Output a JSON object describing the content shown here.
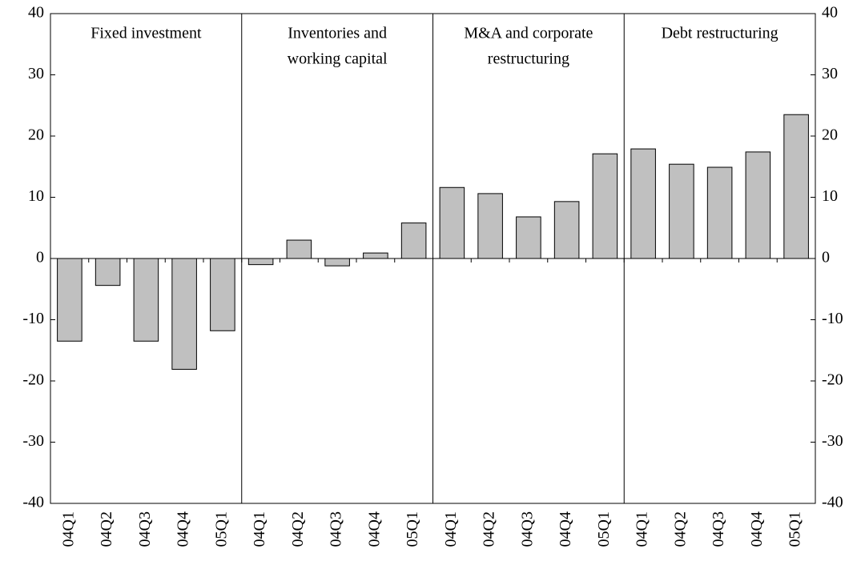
{
  "chart_data": {
    "type": "bar",
    "categories": [
      "04Q1",
      "04Q2",
      "04Q3",
      "04Q4",
      "05Q1",
      "04Q1",
      "04Q2",
      "04Q3",
      "04Q4",
      "05Q1",
      "04Q1",
      "04Q2",
      "04Q3",
      "04Q4",
      "05Q1",
      "04Q1",
      "04Q2",
      "04Q3",
      "04Q4",
      "05Q1"
    ],
    "values": [
      -13.5,
      -4.4,
      -13.5,
      -18.1,
      -11.8,
      -1.0,
      3.0,
      -1.2,
      0.9,
      5.8,
      11.6,
      10.6,
      6.8,
      9.3,
      17.1,
      17.9,
      15.4,
      14.9,
      17.4,
      23.5
    ],
    "color": "#c0c0c0",
    "panels": [
      {
        "lines": [
          "Fixed investment"
        ]
      },
      {
        "lines": [
          "Inventories and",
          "working capital"
        ]
      },
      {
        "lines": [
          "M&A and corporate",
          "restructuring"
        ]
      },
      {
        "lines": [
          "Debt restructuring"
        ]
      }
    ],
    "ylim": [
      -40,
      40
    ],
    "yticks": [
      -40,
      -30,
      -20,
      -10,
      0,
      10,
      20,
      30,
      40
    ],
    "y2lim": [
      -40,
      40
    ],
    "y2ticks": [
      -40,
      -30,
      -20,
      -10,
      0,
      10,
      20,
      30,
      40
    ]
  }
}
